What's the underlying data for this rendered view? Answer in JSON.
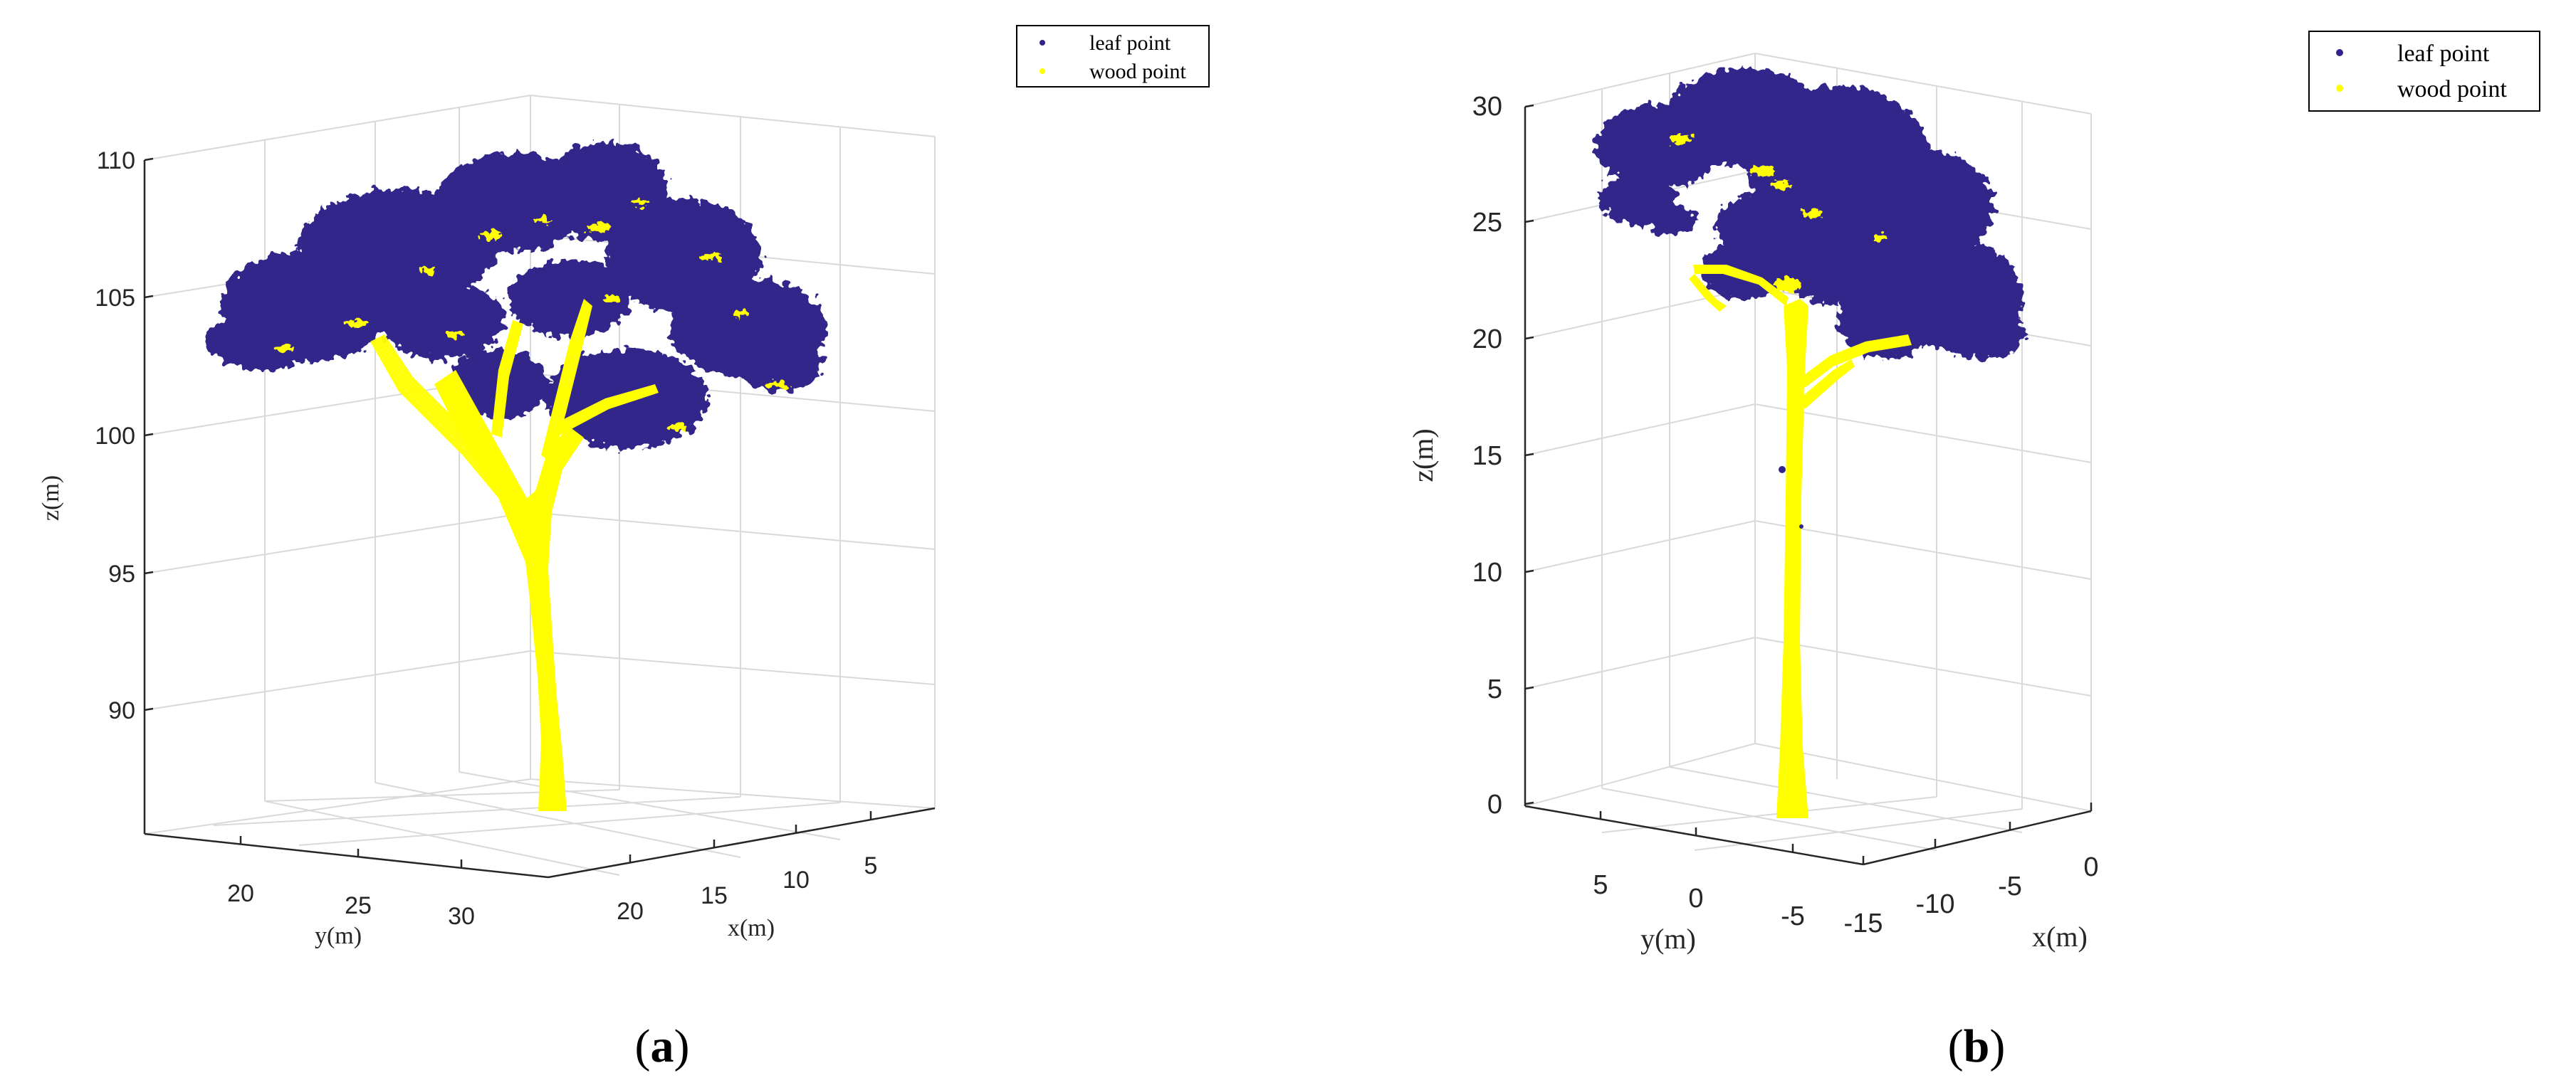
{
  "chart_data": [
    {
      "type": "scatter",
      "subtype": "3d-point-cloud",
      "caption_letter": "a",
      "xlabel": "x(m)",
      "ylabel": "y(m)",
      "zlabel": "z(m)",
      "x_ticks": [
        "20",
        "15",
        "10",
        "5"
      ],
      "y_ticks": [
        "20",
        "25",
        "30"
      ],
      "z_ticks": [
        "110",
        "105",
        "100",
        "95",
        "90"
      ],
      "zlim": [
        86,
        111
      ],
      "legend": [
        {
          "label": "leaf point",
          "color": "#31258a"
        },
        {
          "label": "wood point",
          "color": "#ffff00"
        }
      ],
      "legend_position": "top-right",
      "series": [
        {
          "name": "leaf point",
          "color": "#31258a",
          "description": "crown foliage points, approx z 99 to 110 m"
        },
        {
          "name": "wood point",
          "color": "#ffff00",
          "description": "trunk and branch points, approx z 86 to 106 m"
        }
      ]
    },
    {
      "type": "scatter",
      "subtype": "3d-point-cloud",
      "caption_letter": "b",
      "xlabel": "x(m)",
      "ylabel": "y(m)",
      "zlabel": "z(m)",
      "x_ticks": [
        "-15",
        "-10",
        "-5",
        "0"
      ],
      "y_ticks": [
        "5",
        "0",
        "-5"
      ],
      "z_ticks": [
        "30",
        "25",
        "20",
        "15",
        "10",
        "5",
        "0"
      ],
      "zlim": [
        0,
        31
      ],
      "legend": [
        {
          "label": "leaf point",
          "color": "#31258a"
        },
        {
          "label": "wood point",
          "color": "#ffff00"
        }
      ],
      "legend_position": "top-right",
      "series": [
        {
          "name": "leaf point",
          "color": "#31258a",
          "description": "crown foliage points, approx z 18 to 31 m"
        },
        {
          "name": "wood point",
          "color": "#ffff00",
          "description": "trunk and branch points, approx z 0 to 23 m"
        }
      ]
    }
  ]
}
